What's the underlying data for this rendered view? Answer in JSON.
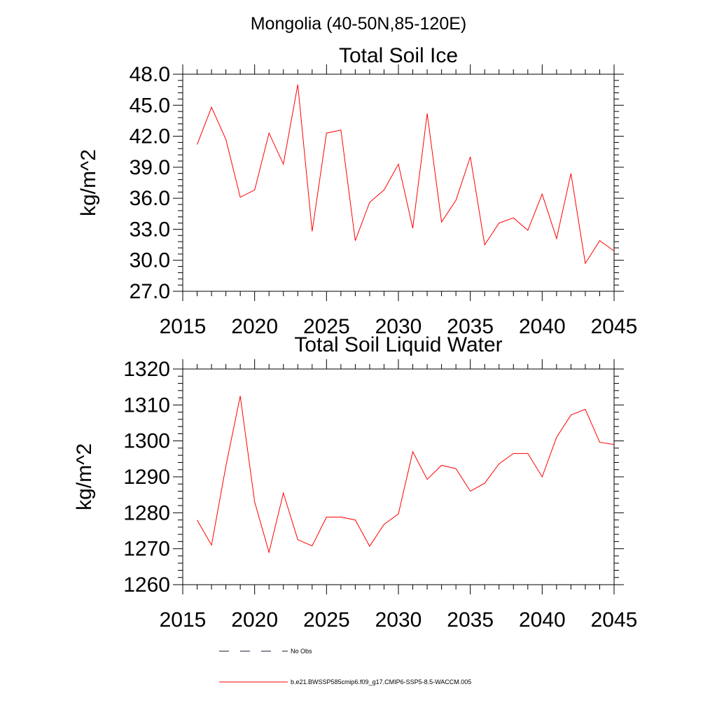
{
  "page_title": "Mongolia (40-50N,85-120E)",
  "chart_data": [
    {
      "type": "line",
      "title": "Total Soil Ice",
      "xlabel": "",
      "ylabel": "kg/m^2",
      "xlim": [
        2015,
        2045
      ],
      "ylim": [
        27.0,
        48.0
      ],
      "x_ticks": [
        "2015",
        "2020",
        "2025",
        "2030",
        "2035",
        "2040",
        "2045"
      ],
      "y_ticks": [
        "27.0",
        "30.0",
        "33.0",
        "36.0",
        "39.0",
        "42.0",
        "45.0",
        "48.0"
      ],
      "series": [
        {
          "name": "b.e21.BWSSP585cmip6.f09_g17.CMIP6-SSP5-8.5-WACCM.005",
          "color": "#ff0000",
          "x": [
            2016,
            2017,
            2018,
            2019,
            2020,
            2021,
            2022,
            2023,
            2024,
            2025,
            2026,
            2027,
            2028,
            2029,
            2030,
            2031,
            2032,
            2033,
            2034,
            2035,
            2036,
            2037,
            2038,
            2039,
            2040,
            2041,
            2042,
            2043,
            2044,
            2045
          ],
          "values": [
            41.2,
            44.8,
            41.7,
            36.1,
            36.8,
            42.3,
            39.3,
            47.0,
            32.8,
            42.3,
            42.6,
            31.9,
            35.6,
            36.8,
            39.3,
            33.1,
            44.2,
            33.7,
            35.8,
            40.0,
            31.5,
            33.6,
            34.1,
            32.9,
            36.4,
            32.1,
            38.4,
            29.7,
            31.9,
            30.9
          ]
        }
      ]
    },
    {
      "type": "line",
      "title": "Total Soil Liquid Water",
      "xlabel": "",
      "ylabel": "kg/m^2",
      "xlim": [
        2015,
        2045
      ],
      "ylim": [
        1260,
        1320
      ],
      "x_ticks": [
        "2015",
        "2020",
        "2025",
        "2030",
        "2035",
        "2040",
        "2045"
      ],
      "y_ticks": [
        "1260",
        "1270",
        "1280",
        "1290",
        "1300",
        "1310",
        "1320"
      ],
      "series": [
        {
          "name": "b.e21.BWSSP585cmip6.f09_g17.CMIP6-SSP5-8.5-WACCM.005",
          "color": "#ff0000",
          "x": [
            2016,
            2017,
            2018,
            2019,
            2020,
            2021,
            2022,
            2023,
            2024,
            2025,
            2026,
            2027,
            2028,
            2029,
            2030,
            2031,
            2032,
            2033,
            2034,
            2035,
            2036,
            2037,
            2038,
            2039,
            2040,
            2041,
            2042,
            2043,
            2044,
            2045
          ],
          "values": [
            1278.0,
            1271.0,
            1293.0,
            1312.5,
            1283.0,
            1269.0,
            1285.5,
            1272.5,
            1270.8,
            1278.8,
            1278.8,
            1278.0,
            1270.7,
            1276.8,
            1279.7,
            1297.0,
            1289.3,
            1293.2,
            1292.3,
            1286.0,
            1288.2,
            1293.6,
            1296.5,
            1296.5,
            1290.0,
            1301.0,
            1307.2,
            1308.8,
            1299.6,
            1299.0
          ]
        }
      ]
    }
  ],
  "legend": {
    "entries": [
      {
        "label": "No Obs",
        "style": "dashed",
        "color": "#1a1a3a"
      },
      {
        "label": "b.e21.BWSSP585cmip6.f09_g17.CMIP6-SSP5-8.5-WACCM.005",
        "style": "solid",
        "color": "#ff0000"
      }
    ]
  }
}
